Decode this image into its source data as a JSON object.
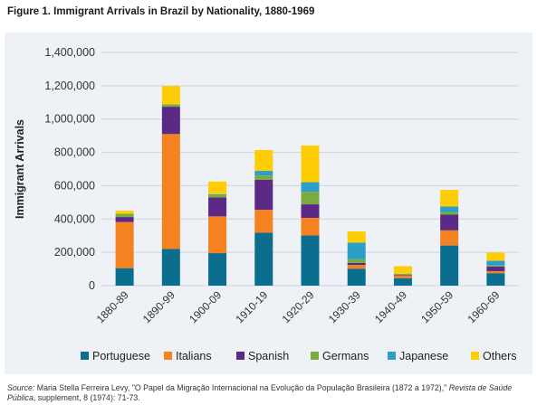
{
  "figure_title": "Figure 1. Immigrant Arrivals in Brazil by Nationality, 1880-1969",
  "source": {
    "label": "Source:",
    "text": " Maria Stella Ferreira Levy, \"O Papel da Migração Internacional na Evolução da População Brasileira (1872 a 1972),\" ",
    "journal": "Revista de Saúde Pública",
    "text2": ", supplement, 8 (1974): 71-73."
  },
  "chart_data": {
    "type": "bar",
    "stacked": true,
    "title": "Figure 1. Immigrant Arrivals in Brazil by Nationality, 1880-1969",
    "xlabel": "",
    "ylabel": "Immigrant Arrivals",
    "ylim": [
      0,
      1400000
    ],
    "yticks": [
      0,
      200000,
      400000,
      600000,
      800000,
      1000000,
      1200000,
      1400000
    ],
    "ytick_labels": [
      "0",
      "200,000",
      "400,000",
      "600,000",
      "800,000",
      "1,000,000",
      "1,200,000",
      "1,400,000"
    ],
    "grid": true,
    "legend_position": "bottom",
    "categories": [
      "1880-89",
      "1890-99",
      "1900-09",
      "1910-19",
      "1920-29",
      "1930-39",
      "1940-49",
      "1950-59",
      "1960-69"
    ],
    "series": [
      {
        "name": "Portuguese",
        "color": "#0b6e8e",
        "values": [
          105000,
          220000,
          195000,
          318000,
          301000,
          102000,
          45000,
          241000,
          75000
        ]
      },
      {
        "name": "Italians",
        "color": "#f58220",
        "values": [
          277000,
          690000,
          221000,
          137000,
          106000,
          22000,
          15000,
          91000,
          12000
        ]
      },
      {
        "name": "Spanish",
        "color": "#5b2a86",
        "values": [
          30000,
          164000,
          113000,
          181000,
          81000,
          12000,
          4000,
          94000,
          28000
        ]
      },
      {
        "name": "Germans",
        "color": "#7aab3c",
        "values": [
          20000,
          15000,
          14000,
          25000,
          75000,
          22000,
          6000,
          16000,
          6000
        ]
      },
      {
        "name": "Japanese",
        "color": "#2c9fc9",
        "values": [
          0,
          0,
          5000,
          28000,
          58000,
          100000,
          1500,
          33000,
          28000
        ]
      },
      {
        "name": "Others",
        "color": "#ffcd05",
        "values": [
          18000,
          110000,
          77000,
          125000,
          220000,
          68000,
          45000,
          100000,
          50000
        ]
      }
    ]
  }
}
